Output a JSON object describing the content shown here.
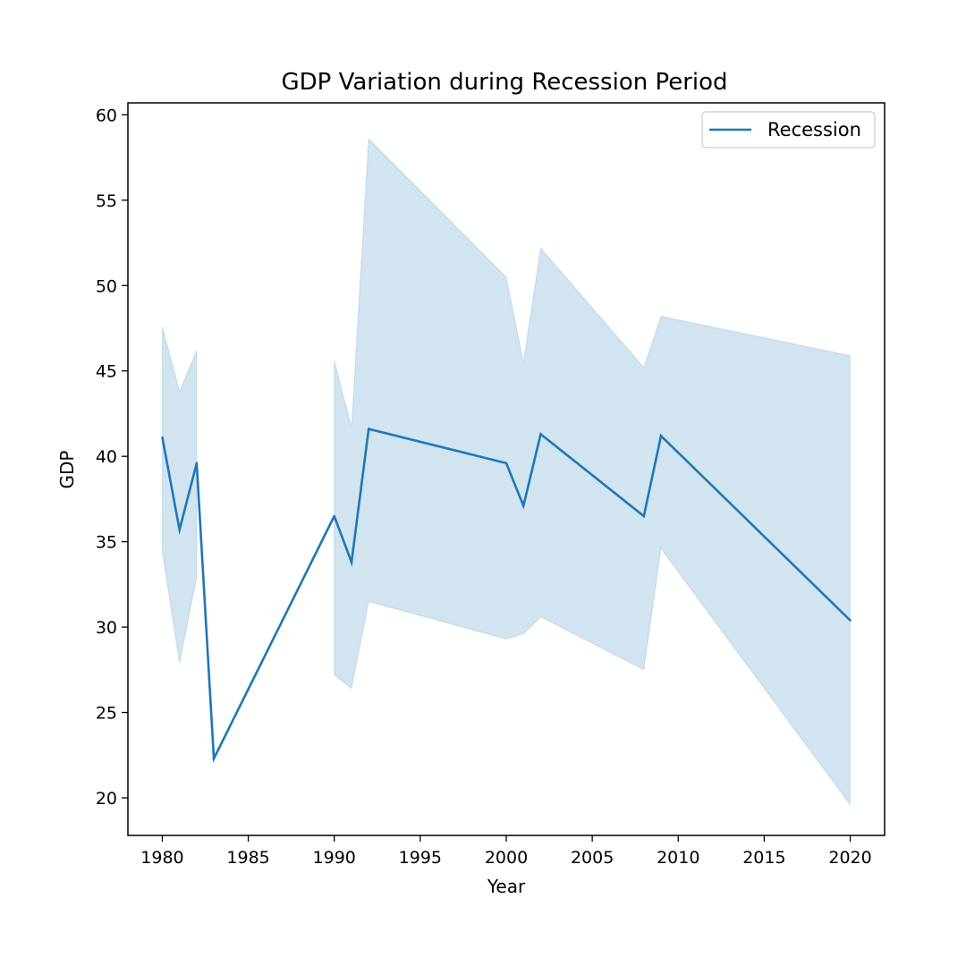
{
  "chart_data": {
    "type": "line",
    "title": "GDP Variation during Recession Period",
    "xlabel": "Year",
    "ylabel": "GDP",
    "xlim": [
      1978,
      2022
    ],
    "ylim": [
      17.8,
      60.7
    ],
    "xticks": [
      1980,
      1985,
      1990,
      1995,
      2000,
      2005,
      2010,
      2015,
      2020
    ],
    "yticks": [
      20,
      25,
      30,
      35,
      40,
      45,
      50,
      55,
      60
    ],
    "grid": false,
    "legend_position": "upper right",
    "colors": {
      "line": "#1f77b4",
      "band": "#1f77b4"
    },
    "series": [
      {
        "name": "Recession",
        "segments": [
          [
            {
              "x": 1980,
              "y": 41.1,
              "lower": 34.4,
              "upper": 47.6
            },
            {
              "x": 1981,
              "y": 35.7,
              "lower": 27.9,
              "upper": 43.8
            },
            {
              "x": 1982,
              "y": 39.6,
              "lower": 32.9,
              "upper": 46.2
            }
          ],
          [
            {
              "x": 1982,
              "y": 39.6
            },
            {
              "x": 1983,
              "y": 22.3
            },
            {
              "x": 1990,
              "y": 36.5
            }
          ],
          [
            {
              "x": 1990,
              "y": 36.5,
              "lower": 27.2,
              "upper": 45.6
            },
            {
              "x": 1991,
              "y": 33.8,
              "lower": 26.4,
              "upper": 41.7
            },
            {
              "x": 1992,
              "y": 41.6,
              "lower": 31.5,
              "upper": 58.6
            },
            {
              "x": 2000,
              "y": 39.6,
              "lower": 29.3,
              "upper": 50.5
            },
            {
              "x": 2001,
              "y": 37.1,
              "lower": 29.6,
              "upper": 45.5
            },
            {
              "x": 2002,
              "y": 41.3,
              "lower": 30.6,
              "upper": 52.2
            },
            {
              "x": 2008,
              "y": 36.5,
              "lower": 27.5,
              "upper": 45.2
            },
            {
              "x": 2009,
              "y": 41.2,
              "lower": 34.6,
              "upper": 48.2
            },
            {
              "x": 2020,
              "y": 30.4,
              "lower": 19.6,
              "upper": 45.9
            }
          ]
        ]
      }
    ]
  }
}
